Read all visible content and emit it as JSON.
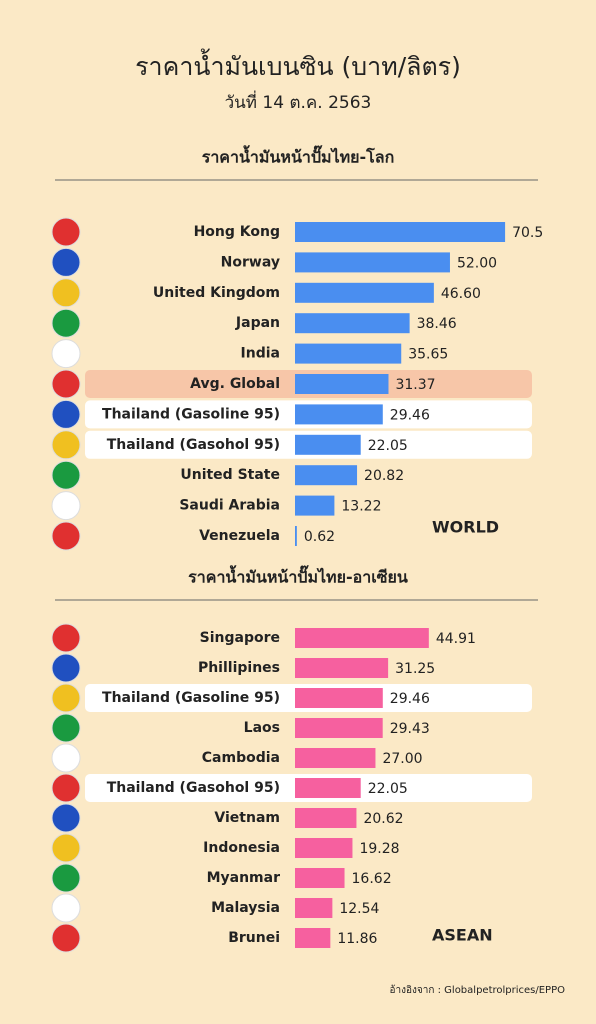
{
  "header": {
    "title": "ราคาน้ำมันเบนซิน (บาท/ลิตร)",
    "subtitle": "วันที่ 14 ต.ค. 2563"
  },
  "source": "อ้างอิงจาก : Globalpetrolprices/EPPO",
  "chart_data": [
    {
      "type": "bar",
      "orientation": "horizontal",
      "title": "ราคาน้ำมันหน้าปั๊มไทย-โลก",
      "annotation": "WORLD",
      "color": "#4a8ef0",
      "categories": [
        "Hong Kong",
        "Norway",
        "United Kingdom",
        "Japan",
        "India",
        "Avg. Global",
        "Thailand (Gasoline 95)",
        "Thailand (Gasohol 95)",
        "United State",
        "Saudi Arabia",
        "Venezuela"
      ],
      "values": [
        70.5,
        52,
        46.6,
        38.46,
        35.65,
        31.37,
        29.46,
        22.05,
        20.82,
        13.22,
        0.62
      ],
      "value_labels": [
        "70.5",
        "52.00",
        "46.60",
        "38.46",
        "35.65",
        "31.37",
        "29.46",
        "22.05",
        "20.82",
        "13.22",
        "0.62"
      ]
    },
    {
      "type": "bar",
      "orientation": "horizontal",
      "title": "ราคาน้ำมันหน้าปั๊มไทย-อาเซียน",
      "annotation": "ASEAN",
      "color": "#f6609f",
      "categories": [
        "Singapore",
        "Phillipines",
        "Thailand (Gasoline 95)",
        "Laos",
        "Cambodia",
        "Thailand (Gasohol 95)",
        "Vietnam",
        "Indonesia",
        "Myanmar",
        "Malaysia",
        "Brunei"
      ],
      "values": [
        44.91,
        31.25,
        29.46,
        29.43,
        27,
        22.05,
        20.62,
        19.28,
        16.62,
        12.54,
        11.86
      ],
      "value_labels": [
        "44.91",
        "31.25",
        "29.46",
        "29.43",
        "27.00",
        "22.05",
        "20.62",
        "19.28",
        "16.62",
        "12.54",
        "11.86"
      ]
    }
  ]
}
